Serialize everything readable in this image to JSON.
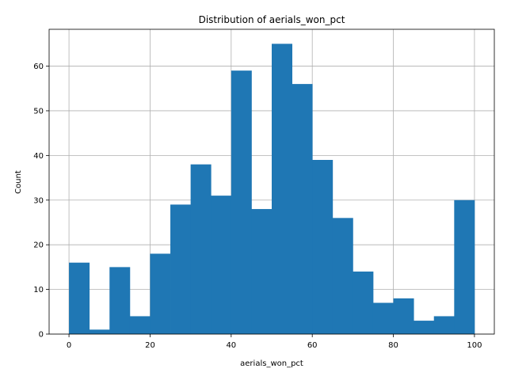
{
  "chart_data": {
    "type": "bar",
    "title": "Distribution of aerials_won_pct",
    "xlabel": "aerials_won_pct",
    "ylabel": "Count",
    "bin_edges": [
      0,
      5,
      10,
      15,
      20,
      25,
      30,
      35,
      40,
      45,
      50,
      55,
      60,
      65,
      70,
      75,
      80,
      85,
      90,
      95,
      100
    ],
    "values": [
      16,
      1,
      15,
      4,
      18,
      29,
      38,
      31,
      59,
      28,
      65,
      56,
      39,
      26,
      14,
      7,
      8,
      3,
      4,
      30
    ],
    "xlim": [
      -4.9,
      104.9
    ],
    "ylim": [
      0,
      68.25
    ],
    "xticks": [
      0,
      20,
      40,
      60,
      80,
      100
    ],
    "yticks": [
      0,
      10,
      20,
      30,
      40,
      50,
      60
    ],
    "grid": true,
    "bar_color": "#1f77b4",
    "grid_color": "#b0b0b0"
  }
}
